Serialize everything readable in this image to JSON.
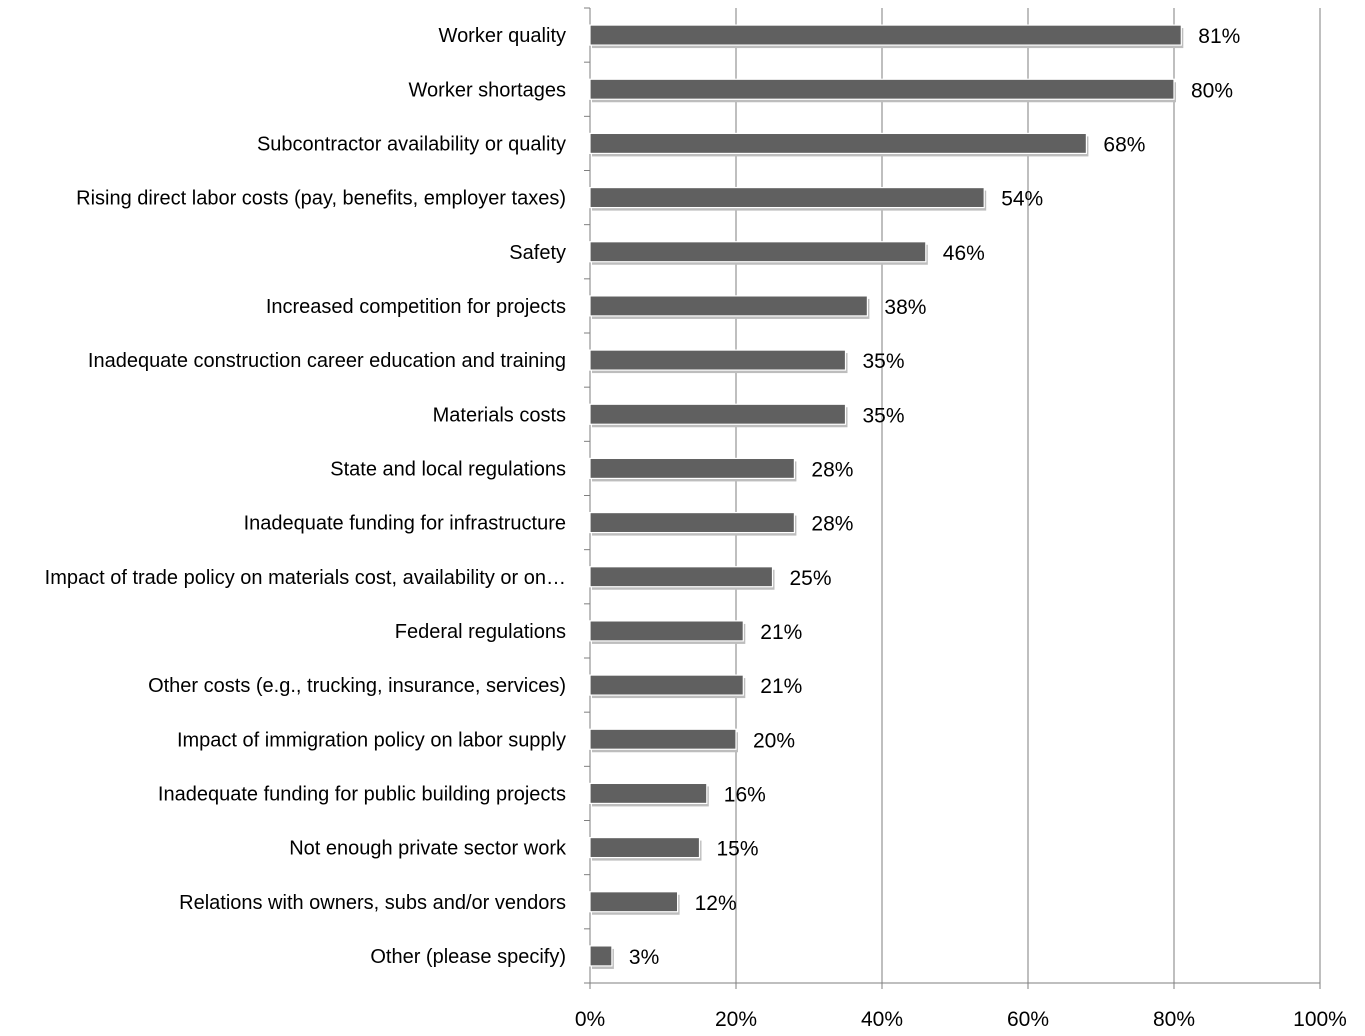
{
  "chart_data": {
    "type": "bar",
    "orientation": "horizontal",
    "title": "",
    "xlabel": "",
    "ylabel": "",
    "xlim": [
      0,
      100
    ],
    "x_tick_labels": [
      "0%",
      "20%",
      "40%",
      "60%",
      "80%",
      "100%"
    ],
    "grid": true,
    "bar_color": "#606060",
    "categories": [
      "Worker quality",
      "Worker shortages",
      "Subcontractor availability or quality",
      "Rising direct labor costs (pay, benefits, employer taxes)",
      "Safety",
      "Increased competition for projects",
      "Inadequate construction career education and training",
      "Materials costs",
      "State and local regulations",
      "Inadequate funding for infrastructure",
      "Impact of trade policy on materials cost, availability or on…",
      "Federal regulations",
      "Other costs (e.g., trucking, insurance, services)",
      "Impact of immigration policy on labor supply",
      "Inadequate funding for public building projects",
      "Not enough private sector work",
      "Relations with owners, subs and/or vendors",
      "Other (please specify)"
    ],
    "values": [
      81,
      80,
      68,
      54,
      46,
      38,
      35,
      35,
      28,
      28,
      25,
      21,
      21,
      20,
      16,
      15,
      12,
      3
    ],
    "data_labels": [
      "81%",
      "80%",
      "68%",
      "54%",
      "46%",
      "38%",
      "35%",
      "35%",
      "28%",
      "28%",
      "25%",
      "21%",
      "21%",
      "20%",
      "16%",
      "15%",
      "12%",
      "3%"
    ]
  }
}
